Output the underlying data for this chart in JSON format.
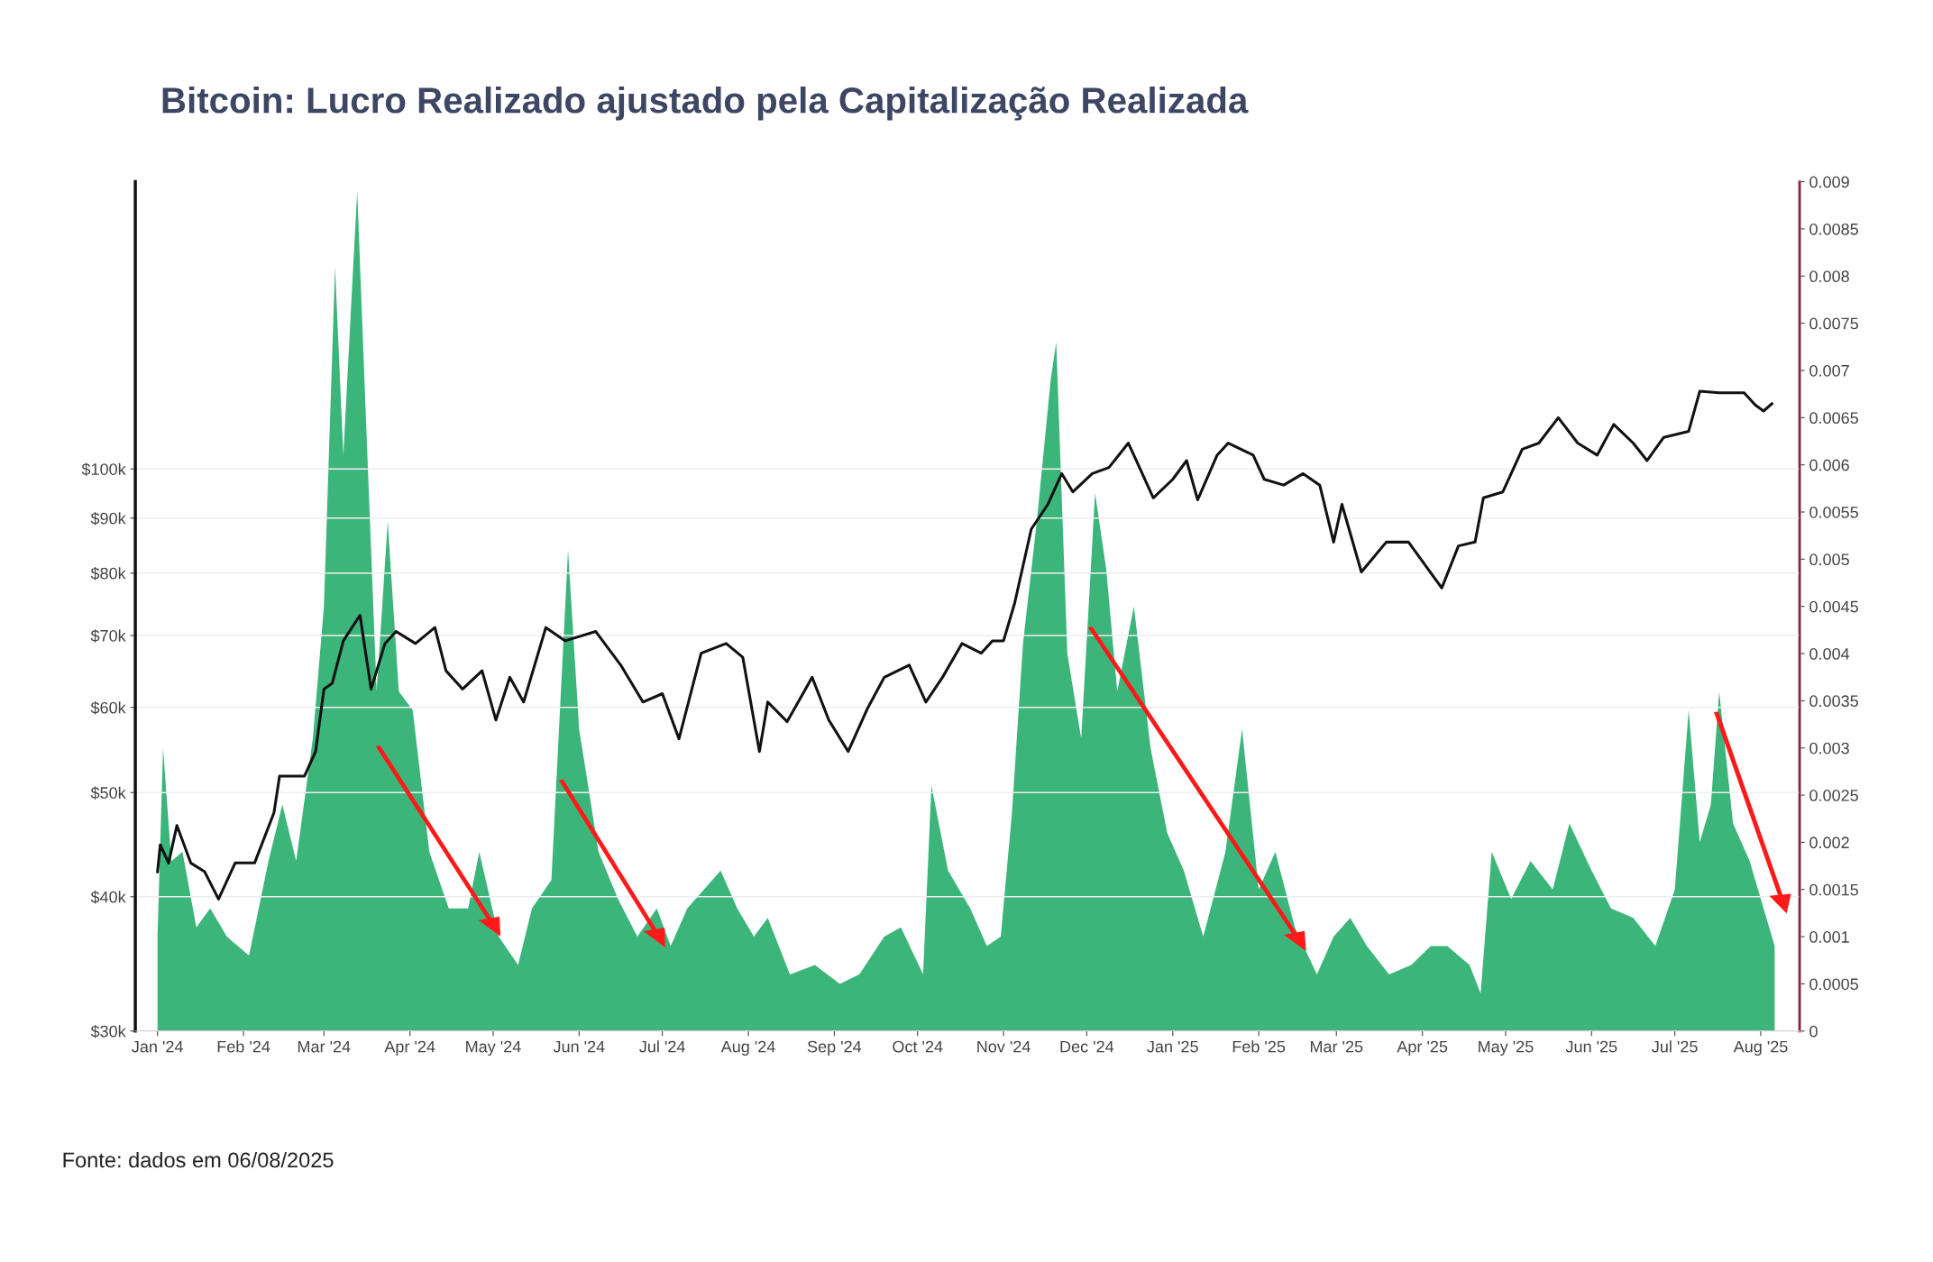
{
  "chart_data": {
    "type": "line",
    "title": "Bitcoin: Lucro Realizado ajustado pela Capitalização Realizada",
    "annotations": [
      "Fonte: dados em 06/08/2025"
    ],
    "xlim": [
      "2023-12-24",
      "2025-08-15"
    ],
    "xticks": [
      {
        "value": "2024-01-01",
        "label": "Jan '24"
      },
      {
        "value": "2024-02-01",
        "label": "Feb '24"
      },
      {
        "value": "2024-03-01",
        "label": "Mar '24"
      },
      {
        "value": "2024-04-01",
        "label": "Apr '24"
      },
      {
        "value": "2024-05-01",
        "label": "May '24"
      },
      {
        "value": "2024-06-01",
        "label": "Jun '24"
      },
      {
        "value": "2024-07-01",
        "label": "Jul '24"
      },
      {
        "value": "2024-08-01",
        "label": "Aug '24"
      },
      {
        "value": "2024-09-01",
        "label": "Sep '24"
      },
      {
        "value": "2024-10-01",
        "label": "Oct '24"
      },
      {
        "value": "2024-11-01",
        "label": "Nov '24"
      },
      {
        "value": "2024-12-01",
        "label": "Dec '24"
      },
      {
        "value": "2025-01-01",
        "label": "Jan '25"
      },
      {
        "value": "2025-02-01",
        "label": "Feb '25"
      },
      {
        "value": "2025-03-01",
        "label": "Mar '25"
      },
      {
        "value": "2025-04-01",
        "label": "Apr '25"
      },
      {
        "value": "2025-05-01",
        "label": "May '25"
      },
      {
        "value": "2025-06-01",
        "label": "Jun '25"
      },
      {
        "value": "2025-07-01",
        "label": "Jul '25"
      },
      {
        "value": "2025-08-01",
        "label": "Aug '25"
      }
    ],
    "log": true,
    "ylim": [
      30000,
      185000
    ],
    "yticks": [
      {
        "value": 30000,
        "label": "$30k"
      },
      {
        "value": 40000,
        "label": "$40k"
      },
      {
        "value": 50000,
        "label": "$50k"
      },
      {
        "value": 60000,
        "label": "$60k"
      },
      {
        "value": 70000,
        "label": "$70k"
      },
      {
        "value": 80000,
        "label": "$80k"
      },
      {
        "value": 90000,
        "label": "$90k"
      },
      {
        "value": 100000,
        "label": "$100k"
      }
    ],
    "y2lim": [
      0,
      0.009
    ],
    "y2ticks": [
      0,
      0.0005,
      0.001,
      0.0015,
      0.002,
      0.0025,
      0.003,
      0.0035,
      0.004,
      0.0045,
      0.005,
      0.0055,
      0.006,
      0.0065,
      0.007,
      0.0075,
      0.008,
      0.0085,
      0.009
    ],
    "grid": "y",
    "legend": false,
    "series": [
      {
        "type": "area",
        "axis": "y2",
        "color": "#3cb57b",
        "x": [
          "2024-01-01",
          "2024-01-03",
          "2024-01-06",
          "2024-01-10",
          "2024-01-15",
          "2024-01-20",
          "2024-01-26",
          "2024-02-03",
          "2024-02-10",
          "2024-02-15",
          "2024-02-20",
          "2024-02-26",
          "2024-03-01",
          "2024-03-05",
          "2024-03-08",
          "2024-03-11",
          "2024-03-13",
          "2024-03-16",
          "2024-03-20",
          "2024-03-24",
          "2024-03-28",
          "2024-04-02",
          "2024-04-08",
          "2024-04-15",
          "2024-04-22",
          "2024-04-26",
          "2024-05-03",
          "2024-05-10",
          "2024-05-15",
          "2024-05-22",
          "2024-05-28",
          "2024-06-01",
          "2024-06-08",
          "2024-06-15",
          "2024-06-22",
          "2024-06-29",
          "2024-07-04",
          "2024-07-10",
          "2024-07-16",
          "2024-07-22",
          "2024-07-28",
          "2024-08-03",
          "2024-08-08",
          "2024-08-16",
          "2024-08-25",
          "2024-09-03",
          "2024-09-10",
          "2024-09-19",
          "2024-09-25",
          "2024-10-03",
          "2024-10-06",
          "2024-10-12",
          "2024-10-20",
          "2024-10-26",
          "2024-10-31",
          "2024-11-04",
          "2024-11-08",
          "2024-11-13",
          "2024-11-18",
          "2024-11-20",
          "2024-11-24",
          "2024-11-29",
          "2024-12-04",
          "2024-12-08",
          "2024-12-12",
          "2024-12-18",
          "2024-12-24",
          "2024-12-30",
          "2025-01-05",
          "2025-01-12",
          "2025-01-20",
          "2025-01-26",
          "2025-02-01",
          "2025-02-07",
          "2025-02-14",
          "2025-02-22",
          "2025-02-28",
          "2025-03-06",
          "2025-03-12",
          "2025-03-20",
          "2025-03-28",
          "2025-04-04",
          "2025-04-10",
          "2025-04-18",
          "2025-04-22",
          "2025-04-26",
          "2025-05-03",
          "2025-05-10",
          "2025-05-18",
          "2025-05-24",
          "2025-06-01",
          "2025-06-08",
          "2025-06-16",
          "2025-06-24",
          "2025-07-01",
          "2025-07-06",
          "2025-07-10",
          "2025-07-14",
          "2025-07-17",
          "2025-07-22",
          "2025-07-28",
          "2025-08-01",
          "2025-08-06"
        ],
        "values": [
          0.001,
          0.003,
          0.0018,
          0.0019,
          0.0011,
          0.0013,
          0.001,
          0.0008,
          0.0018,
          0.0024,
          0.0018,
          0.0031,
          0.0045,
          0.0081,
          0.0061,
          0.0078,
          0.0089,
          0.0066,
          0.0036,
          0.0054,
          0.0036,
          0.0034,
          0.0019,
          0.0013,
          0.0013,
          0.0019,
          0.001,
          0.0007,
          0.0013,
          0.0016,
          0.0051,
          0.0032,
          0.0019,
          0.0014,
          0.001,
          0.0013,
          0.0009,
          0.0013,
          0.0015,
          0.0017,
          0.0013,
          0.001,
          0.0012,
          0.0006,
          0.0007,
          0.0005,
          0.0006,
          0.001,
          0.0011,
          0.0006,
          0.0026,
          0.0017,
          0.0013,
          0.0009,
          0.001,
          0.0023,
          0.0041,
          0.0054,
          0.0069,
          0.0073,
          0.004,
          0.0031,
          0.0057,
          0.0049,
          0.0036,
          0.0045,
          0.003,
          0.0021,
          0.0017,
          0.001,
          0.0019,
          0.0032,
          0.0015,
          0.0019,
          0.0011,
          0.0006,
          0.001,
          0.0012,
          0.0009,
          0.0006,
          0.0007,
          0.0009,
          0.0009,
          0.0007,
          0.0004,
          0.0019,
          0.0014,
          0.0018,
          0.0015,
          0.0022,
          0.0017,
          0.0013,
          0.0012,
          0.0009,
          0.0015,
          0.0034,
          0.002,
          0.0024,
          0.0036,
          0.0022,
          0.0018,
          0.0014,
          0.0009
        ]
      },
      {
        "color": "#111111",
        "x": [
          "2024-01-01",
          "2024-01-02",
          "2024-01-05",
          "2024-01-08",
          "2024-01-13",
          "2024-01-18",
          "2024-01-23",
          "2024-01-29",
          "2024-02-05",
          "2024-02-12",
          "2024-02-14",
          "2024-02-23",
          "2024-02-27",
          "2024-03-01",
          "2024-03-04",
          "2024-03-08",
          "2024-03-14",
          "2024-03-18",
          "2024-03-23",
          "2024-03-27",
          "2024-04-03",
          "2024-04-10",
          "2024-04-14",
          "2024-04-20",
          "2024-04-27",
          "2024-05-02",
          "2024-05-07",
          "2024-05-12",
          "2024-05-20",
          "2024-05-27",
          "2024-06-07",
          "2024-06-16",
          "2024-06-24",
          "2024-07-01",
          "2024-07-07",
          "2024-07-15",
          "2024-07-24",
          "2024-07-30",
          "2024-08-05",
          "2024-08-08",
          "2024-08-15",
          "2024-08-24",
          "2024-08-30",
          "2024-09-06",
          "2024-09-13",
          "2024-09-19",
          "2024-09-28",
          "2024-10-04",
          "2024-10-10",
          "2024-10-17",
          "2024-10-24",
          "2024-10-28",
          "2024-11-01",
          "2024-11-05",
          "2024-11-11",
          "2024-11-17",
          "2024-11-22",
          "2024-11-26",
          "2024-12-03",
          "2024-12-09",
          "2024-12-16",
          "2024-12-25",
          "2025-01-01",
          "2025-01-06",
          "2025-01-10",
          "2025-01-17",
          "2025-01-21",
          "2025-01-30",
          "2025-02-03",
          "2025-02-10",
          "2025-02-17",
          "2025-02-23",
          "2025-02-28",
          "2025-03-03",
          "2025-03-10",
          "2025-03-19",
          "2025-03-27",
          "2025-04-05",
          "2025-04-08",
          "2025-04-14",
          "2025-04-20",
          "2025-04-23",
          "2025-04-30",
          "2025-05-07",
          "2025-05-13",
          "2025-05-20",
          "2025-05-27",
          "2025-06-03",
          "2025-06-09",
          "2025-06-16",
          "2025-06-21",
          "2025-06-27",
          "2025-07-06",
          "2025-07-10",
          "2025-07-17",
          "2025-07-26",
          "2025-07-30",
          "2025-08-02",
          "2025-08-05"
        ],
        "values": [
          42200,
          44700,
          43000,
          46600,
          43000,
          42200,
          39800,
          43000,
          43000,
          47900,
          51800,
          51800,
          54600,
          62400,
          63200,
          69200,
          73100,
          62400,
          68800,
          70600,
          68800,
          71200,
          64900,
          62400,
          64900,
          58400,
          64000,
          60700,
          71200,
          69200,
          70600,
          65700,
          60700,
          61800,
          56100,
          67400,
          68800,
          66800,
          54600,
          60700,
          58200,
          64000,
          58400,
          54600,
          59900,
          64000,
          65700,
          60700,
          64000,
          68800,
          67400,
          69200,
          69200,
          75000,
          87900,
          92700,
          99000,
          95200,
          99000,
          100300,
          105700,
          94000,
          97800,
          101800,
          93600,
          103000,
          105700,
          103000,
          97800,
          96600,
          99000,
          96600,
          85500,
          92700,
          80200,
          85500,
          85500,
          79400,
          77500,
          84800,
          85500,
          94000,
          95200,
          104300,
          105700,
          111600,
          105700,
          103000,
          110000,
          105700,
          101800,
          107000,
          108400,
          118100,
          117700,
          117700,
          114700,
          113200,
          115000
        ]
      }
    ]
  }
}
